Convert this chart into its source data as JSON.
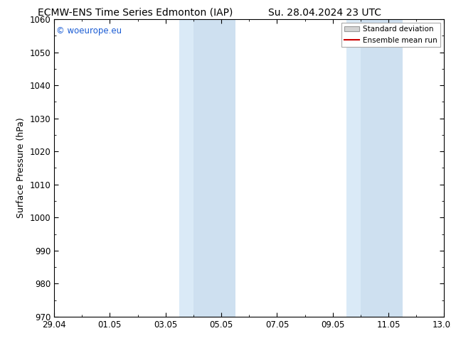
{
  "title_left": "ECMW-ENS Time Series Edmonton (IAP)",
  "title_right": "Su. 28.04.2024 23 UTC",
  "ylabel": "Surface Pressure (hPa)",
  "xlim_start": 0,
  "xlim_end": 14,
  "ylim": [
    970,
    1060
  ],
  "yticks": [
    970,
    980,
    990,
    1000,
    1010,
    1020,
    1030,
    1040,
    1050,
    1060
  ],
  "xtick_labels": [
    "29.04",
    "01.05",
    "03.05",
    "05.05",
    "07.05",
    "09.05",
    "11.05",
    "13.05"
  ],
  "xtick_positions": [
    0,
    2,
    4,
    6,
    8,
    10,
    12,
    14
  ],
  "shaded_regions": [
    {
      "xmin": 4.5,
      "xmax": 5.0,
      "color": "#daeaf7"
    },
    {
      "xmin": 5.0,
      "xmax": 6.5,
      "color": "#cee0f0"
    },
    {
      "xmin": 10.5,
      "xmax": 11.0,
      "color": "#daeaf7"
    },
    {
      "xmin": 11.0,
      "xmax": 12.5,
      "color": "#cee0f0"
    }
  ],
  "background_color": "#ffffff",
  "plot_bg_color": "#ffffff",
  "watermark_text": "© woeurope.eu",
  "watermark_color": "#1a5cd4",
  "legend_std_label": "Standard deviation",
  "legend_mean_label": "Ensemble mean run",
  "legend_std_facecolor": "#d4d4d4",
  "legend_std_edgecolor": "#999999",
  "legend_mean_color": "#cc0000",
  "title_fontsize": 10,
  "axis_label_fontsize": 9,
  "tick_fontsize": 8.5,
  "watermark_fontsize": 8.5,
  "legend_fontsize": 7.5
}
